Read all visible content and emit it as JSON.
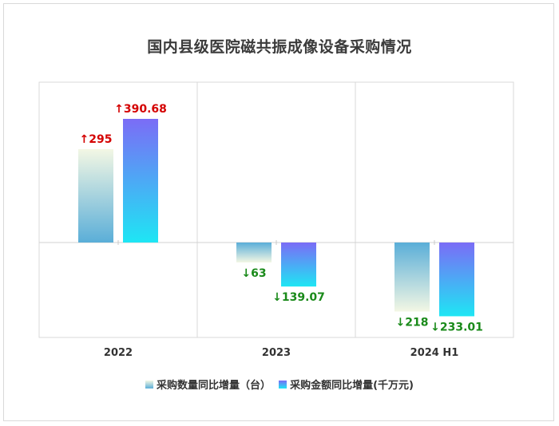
{
  "chart_data": {
    "type": "bar",
    "title": "国内县级医院磁共振成像设备采购情况",
    "categories": [
      "2022",
      "2023",
      "2024 H1"
    ],
    "series": [
      {
        "name": "采购数量同比增量（台）",
        "values": [
          295,
          -63,
          -218
        ],
        "labels": [
          "↑295",
          "↓63",
          "↓218"
        ]
      },
      {
        "name": "采购金额同比增量(千万元)",
        "values": [
          390.68,
          -139.07,
          -233.01
        ],
        "labels": [
          "↑390.68",
          "↓139.07",
          "↓233.01"
        ]
      }
    ],
    "ylim": [
      -300,
      400
    ],
    "grid": true,
    "legend": "bottom",
    "colors": {
      "series1_top": "#f3f7e4",
      "series1_bottom": "#5aaed8",
      "series2_top": "#7b6cf6",
      "series2_bottom": "#1ee6f4",
      "positive_label": "#d40000",
      "negative_label": "#1a8a1a"
    }
  }
}
